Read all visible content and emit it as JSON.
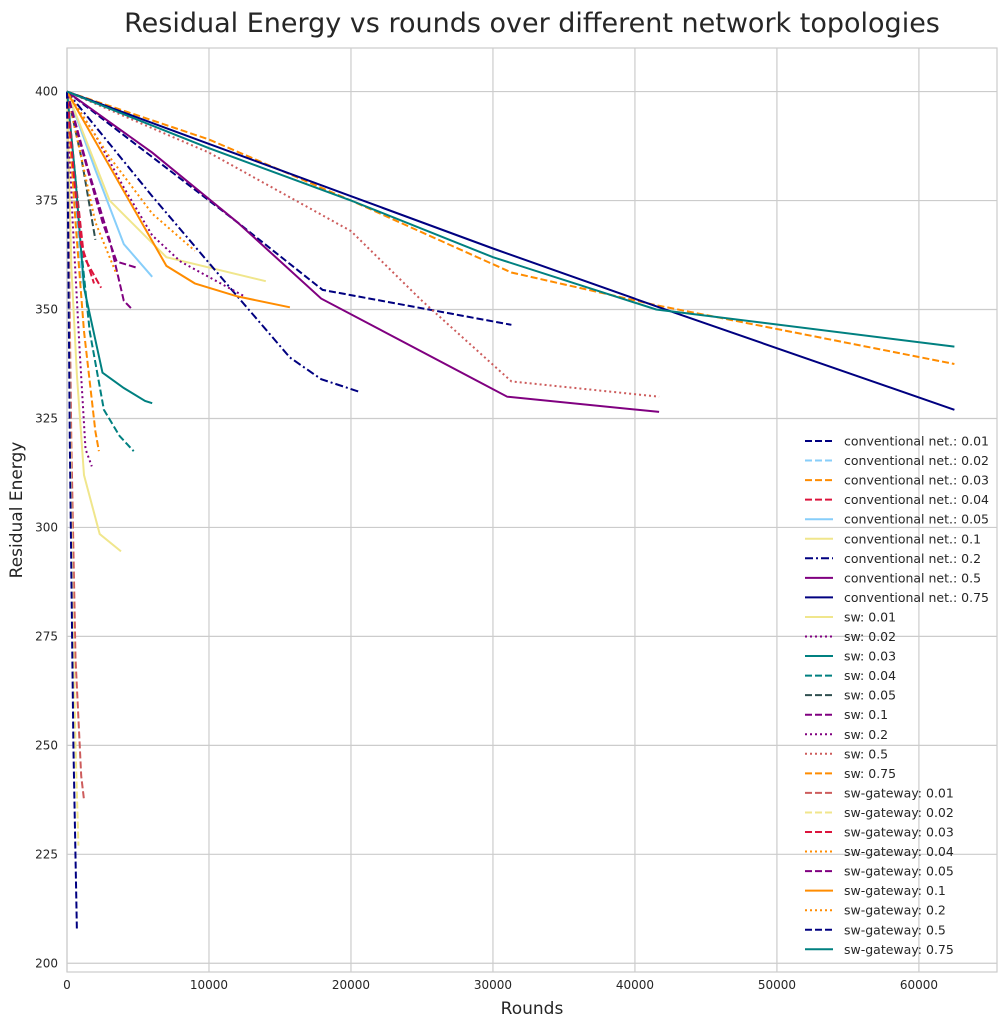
{
  "chart_data": {
    "type": "line",
    "title": "Residual Energy vs rounds over different network topologies",
    "xlabel": "Rounds",
    "ylabel": "Residual Energy",
    "xlim": [
      0,
      65500
    ],
    "ylim": [
      198,
      410
    ],
    "xticks": [
      0,
      10000,
      20000,
      30000,
      40000,
      50000,
      60000
    ],
    "yticks": [
      200,
      225,
      250,
      275,
      300,
      325,
      350,
      375,
      400
    ],
    "grid": true,
    "legend_position": "lower-right",
    "series": [
      {
        "name": "conventional net.: 0.01",
        "color": "#000080",
        "dash": "dashed",
        "x": [
          0,
          6000,
          12000,
          18000,
          31300
        ],
        "y": [
          400,
          385,
          370,
          354.5,
          346.5
        ]
      },
      {
        "name": "conventional net.: 0.02",
        "color": "#87cefa",
        "dash": "dashed",
        "x": [
          0,
          500,
          1000
        ],
        "y": [
          400,
          380,
          356
        ]
      },
      {
        "name": "conventional net.: 0.03",
        "color": "#ff8c00",
        "dash": "dashed",
        "x": [
          0,
          10000,
          20000,
          31300,
          41500,
          62500
        ],
        "y": [
          400,
          389,
          375,
          358.5,
          351,
          337.5
        ]
      },
      {
        "name": "conventional net.: 0.04",
        "color": "#dc143c",
        "dash": "dashed",
        "x": [
          0,
          600,
          1200,
          2400
        ],
        "y": [
          400,
          380,
          362,
          355
        ]
      },
      {
        "name": "conventional net.: 0.05",
        "color": "#87cefa",
        "dash": "solid",
        "x": [
          0,
          2000,
          4000,
          6000
        ],
        "y": [
          400,
          382,
          365,
          357.5
        ]
      },
      {
        "name": "conventional net.: 0.1",
        "color": "#f0e68c",
        "dash": "solid",
        "x": [
          0,
          3000,
          7000,
          14000
        ],
        "y": [
          400,
          375,
          362,
          356.5
        ]
      },
      {
        "name": "conventional net.: 0.2",
        "color": "#000080",
        "dash": "dashdot",
        "x": [
          0,
          6000,
          12000,
          15700,
          17900,
          20700
        ],
        "y": [
          400,
          376,
          353,
          339,
          334,
          331
        ]
      },
      {
        "name": "conventional net.: 0.5",
        "color": "#800080",
        "dash": "solid",
        "x": [
          0,
          6000,
          12000,
          17900,
          31000,
          41700
        ],
        "y": [
          400,
          386,
          370,
          352.5,
          330,
          326.5
        ]
      },
      {
        "name": "conventional net.: 0.75",
        "color": "#000080",
        "dash": "solid",
        "x": [
          0,
          10000,
          20000,
          30000,
          41700,
          62500
        ],
        "y": [
          400,
          388,
          376,
          364,
          350.5,
          327
        ]
      },
      {
        "name": "sw: 0.01",
        "color": "#f0e68c",
        "dash": "solid",
        "x": [
          0,
          300,
          700,
          1200,
          2300,
          3800
        ],
        "y": [
          400,
          360,
          335,
          312,
          298.5,
          294.5
        ]
      },
      {
        "name": "sw: 0.02",
        "color": "#800080",
        "dash": "dotted",
        "x": [
          0,
          400,
          900,
          1300,
          1750
        ],
        "y": [
          400,
          370,
          340,
          318,
          314
        ]
      },
      {
        "name": "sw: 0.03",
        "color": "#008080",
        "dash": "solid",
        "x": [
          0,
          600,
          1200,
          2500,
          4000,
          5500,
          6000
        ],
        "y": [
          400,
          380,
          355,
          335.5,
          332,
          329,
          328.5
        ]
      },
      {
        "name": "sw: 0.04",
        "color": "#008080",
        "dash": "dashed",
        "x": [
          0,
          800,
          1600,
          2600,
          3700,
          4700
        ],
        "y": [
          400,
          370,
          345,
          327,
          321,
          317.5
        ]
      },
      {
        "name": "sw: 0.05",
        "color": "#2f4f4f",
        "dash": "dashed",
        "x": [
          0,
          1000,
          2000
        ],
        "y": [
          400,
          385,
          366
        ]
      },
      {
        "name": "sw: 0.1",
        "color": "#800080",
        "dash": "dashed",
        "x": [
          0,
          1500,
          3000,
          4000,
          4600
        ],
        "y": [
          400,
          382,
          366,
          352,
          350
        ]
      },
      {
        "name": "sw: 0.2",
        "color": "#800080",
        "dash": "dotted",
        "x": [
          0,
          2000,
          4000,
          6000,
          8000,
          12500
        ],
        "y": [
          400,
          390,
          378,
          367,
          361,
          353
        ]
      },
      {
        "name": "sw: 0.5",
        "color": "#cd5c5c",
        "dash": "dotted",
        "x": [
          0,
          10000,
          20000,
          25000,
          31300,
          41700
        ],
        "y": [
          400,
          386,
          368,
          352,
          333.5,
          330
        ]
      },
      {
        "name": "sw: 0.75",
        "color": "#ff8c00",
        "dash": "dashed",
        "x": [
          0,
          600,
          1200,
          2000,
          2250
        ],
        "y": [
          400,
          370,
          345,
          322,
          317.5
        ]
      },
      {
        "name": "sw-gateway: 0.01",
        "color": "#cd5c5c",
        "dash": "dashed",
        "x": [
          0,
          300,
          600,
          1000,
          1200
        ],
        "y": [
          400,
          320,
          270,
          243,
          237.5
        ]
      },
      {
        "name": "sw-gateway: 0.02",
        "color": "#f0e68c",
        "dash": "dashed",
        "x": [
          0,
          200,
          400,
          600,
          800
        ],
        "y": [
          400,
          330,
          280,
          250,
          227
        ]
      },
      {
        "name": "sw-gateway: 0.03",
        "color": "#dc143c",
        "dash": "dashed",
        "x": [
          0,
          500,
          1000,
          1900
        ],
        "y": [
          400,
          380,
          365,
          356
        ]
      },
      {
        "name": "sw-gateway: 0.04",
        "color": "#ff8c00",
        "dash": "dotted",
        "x": [
          0,
          1000,
          2000,
          3500
        ],
        "y": [
          400,
          385,
          370,
          358
        ]
      },
      {
        "name": "sw-gateway: 0.05",
        "color": "#800080",
        "dash": "dashed",
        "x": [
          0,
          1200,
          2500,
          3500,
          5000
        ],
        "y": [
          400,
          385,
          370,
          361,
          359.5
        ]
      },
      {
        "name": "sw-gateway: 0.1",
        "color": "#ff8c00",
        "dash": "solid",
        "x": [
          0,
          3500,
          7000,
          9000,
          12000,
          15700
        ],
        "y": [
          400,
          380,
          360,
          356,
          353,
          350.5
        ]
      },
      {
        "name": "sw-gateway: 0.2",
        "color": "#ff8c00",
        "dash": "dotted",
        "x": [
          0,
          3000,
          6000,
          9000
        ],
        "y": [
          400,
          385,
          372,
          363.5
        ]
      },
      {
        "name": "sw-gateway: 0.5",
        "color": "#000080",
        "dash": "dashed",
        "x": [
          0,
          200,
          450,
          700
        ],
        "y": [
          400,
          320,
          250,
          207.5
        ]
      },
      {
        "name": "sw-gateway: 0.75",
        "color": "#008080",
        "dash": "solid",
        "x": [
          0,
          10000,
          20000,
          30000,
          41500,
          62500
        ],
        "y": [
          400,
          387,
          375,
          362,
          350,
          341.5
        ]
      }
    ]
  }
}
